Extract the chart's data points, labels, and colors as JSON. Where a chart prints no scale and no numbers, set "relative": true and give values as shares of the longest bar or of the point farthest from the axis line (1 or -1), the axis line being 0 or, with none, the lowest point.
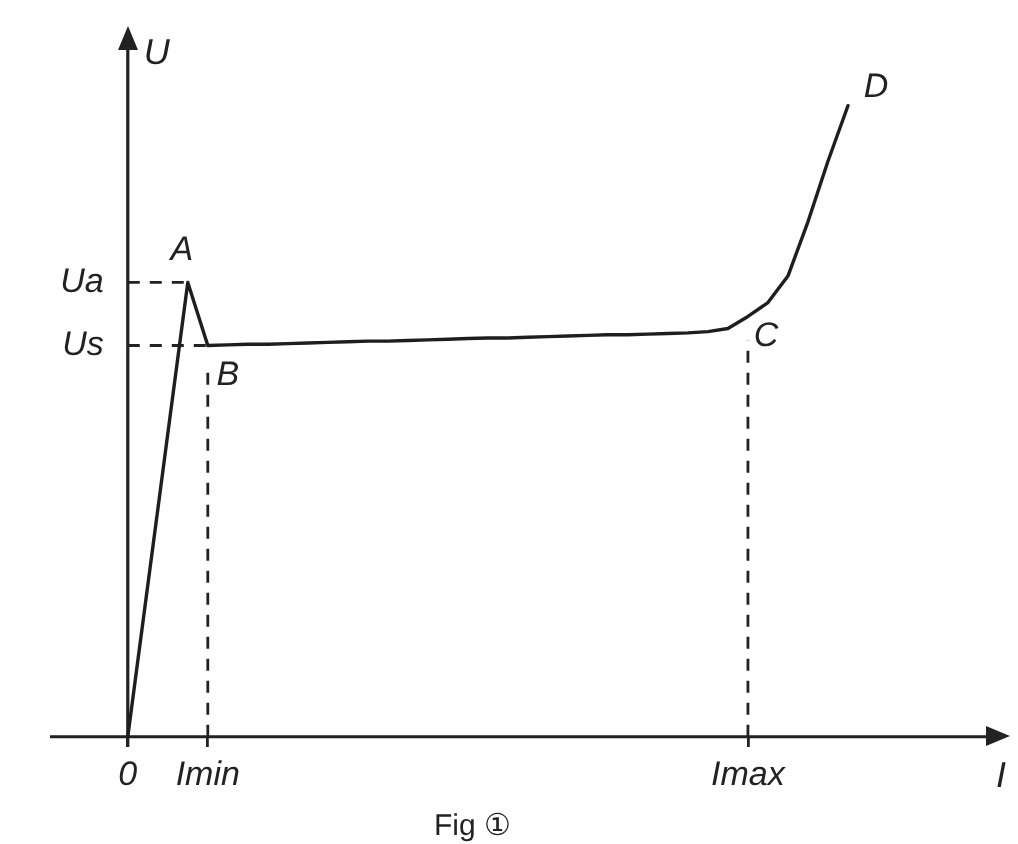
{
  "chart_data": {
    "type": "line",
    "xlabel": "I",
    "ylabel": "U",
    "relative": true,
    "categories": [
      "0",
      null,
      null,
      null,
      "Imin",
      null,
      null,
      null,
      null,
      null,
      null,
      null,
      null,
      null,
      null,
      null,
      null,
      null,
      null,
      null,
      null,
      null,
      null,
      null,
      null,
      null,
      null,
      null,
      null,
      null,
      null,
      "Imax",
      null,
      null,
      null,
      null,
      null
    ],
    "series": [
      {
        "color": "#1e1e1e",
        "values": [
          0,
          0.24,
          0.48,
          0.72,
          0.62,
          0.621,
          0.622,
          0.622,
          0.623,
          0.624,
          0.625,
          0.626,
          0.627,
          0.627,
          0.628,
          0.629,
          0.63,
          0.631,
          0.632,
          0.632,
          0.633,
          0.634,
          0.635,
          0.636,
          0.637,
          0.637,
          0.638,
          0.639,
          0.64,
          0.642,
          0.647,
          0.666,
          0.688,
          0.73,
          0.816,
          0.912,
          1
        ]
      }
    ],
    "ref_lines": [
      {
        "axis": "y",
        "value": 0.72,
        "label": "Ua",
        "line_style": "dashed"
      },
      {
        "axis": "y",
        "value": 0.62,
        "label": "Us",
        "line_style": "dashed"
      },
      {
        "axis": "x",
        "value": "Imin",
        "line_style": "dashed"
      },
      {
        "axis": "x",
        "value": "Imax",
        "line_style": "dashed"
      }
    ],
    "annotations": [
      {
        "text": "A",
        "y": 0.72
      },
      {
        "text": "B",
        "x": "Imin",
        "y": 0.62
      },
      {
        "text": "C",
        "x": "Imax",
        "y": 0.666
      },
      "D",
      "Fig ①"
    ]
  }
}
